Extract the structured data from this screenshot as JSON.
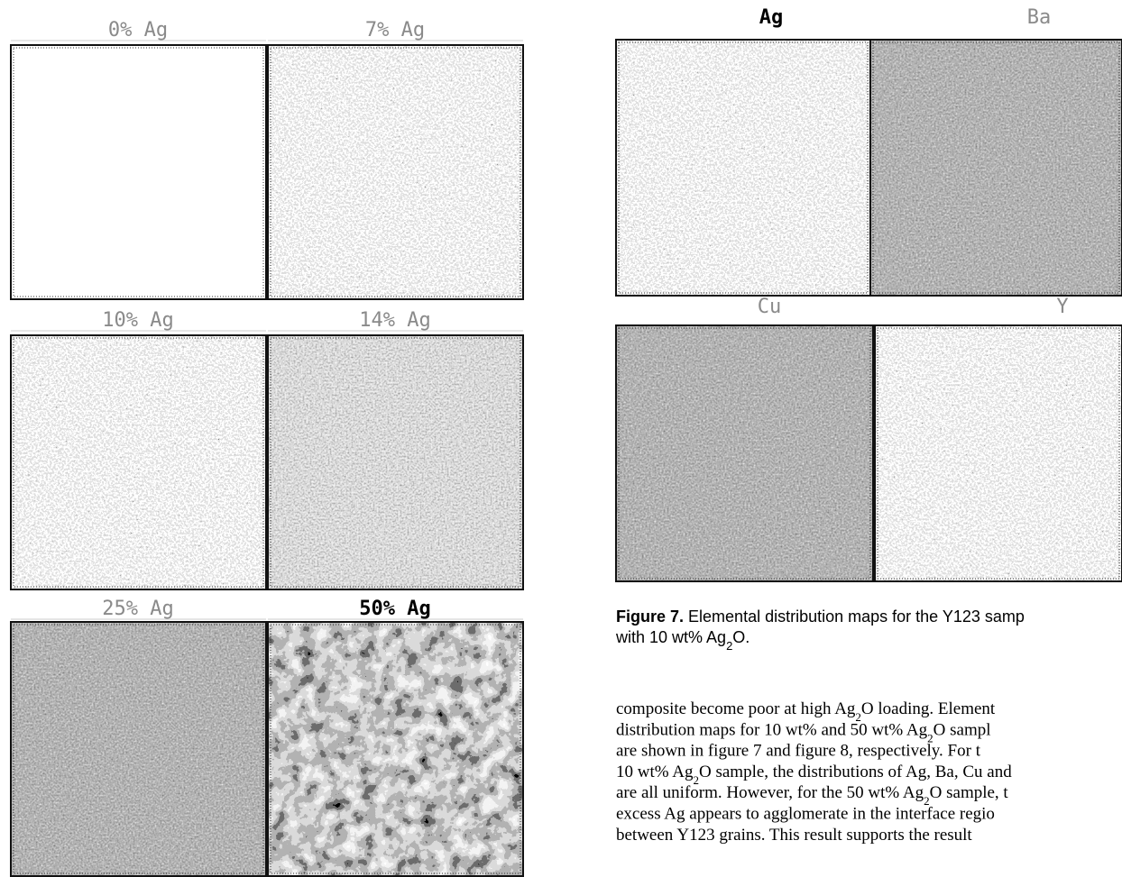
{
  "left_figure": {
    "labels": [
      "0% Ag",
      "7% Ag",
      "10% Ag",
      "14% Ag",
      "25% Ag",
      "50% Ag"
    ]
  },
  "right_figure": {
    "labels": [
      "Ag",
      "Ba",
      "Cu",
      "Y"
    ],
    "caption": {
      "label": "Figure 7.",
      "lines": [
        [
          "Elemental distribution maps for the Y123 samp"
        ],
        [
          "with 10 wt% Ag",
          "2",
          "O."
        ]
      ]
    }
  },
  "body": {
    "lines": [
      [
        "composite become poor at high Ag",
        "2",
        "O loading.  Element"
      ],
      [
        "distribution maps for 10 wt% and 50 wt% Ag",
        "2",
        "O sampl"
      ],
      [
        "are shown in figure 7 and figure 8, respectively.  For t"
      ],
      [
        "10 wt% Ag",
        "2",
        "O sample, the distributions of Ag, Ba, Cu and"
      ],
      [
        "are all uniform.  However, for the 50 wt% Ag",
        "2",
        "O sample, t"
      ],
      [
        "excess Ag appears to agglomerate in the interface regio"
      ],
      [
        "between Y123 grains.  This result supports the result"
      ]
    ]
  }
}
